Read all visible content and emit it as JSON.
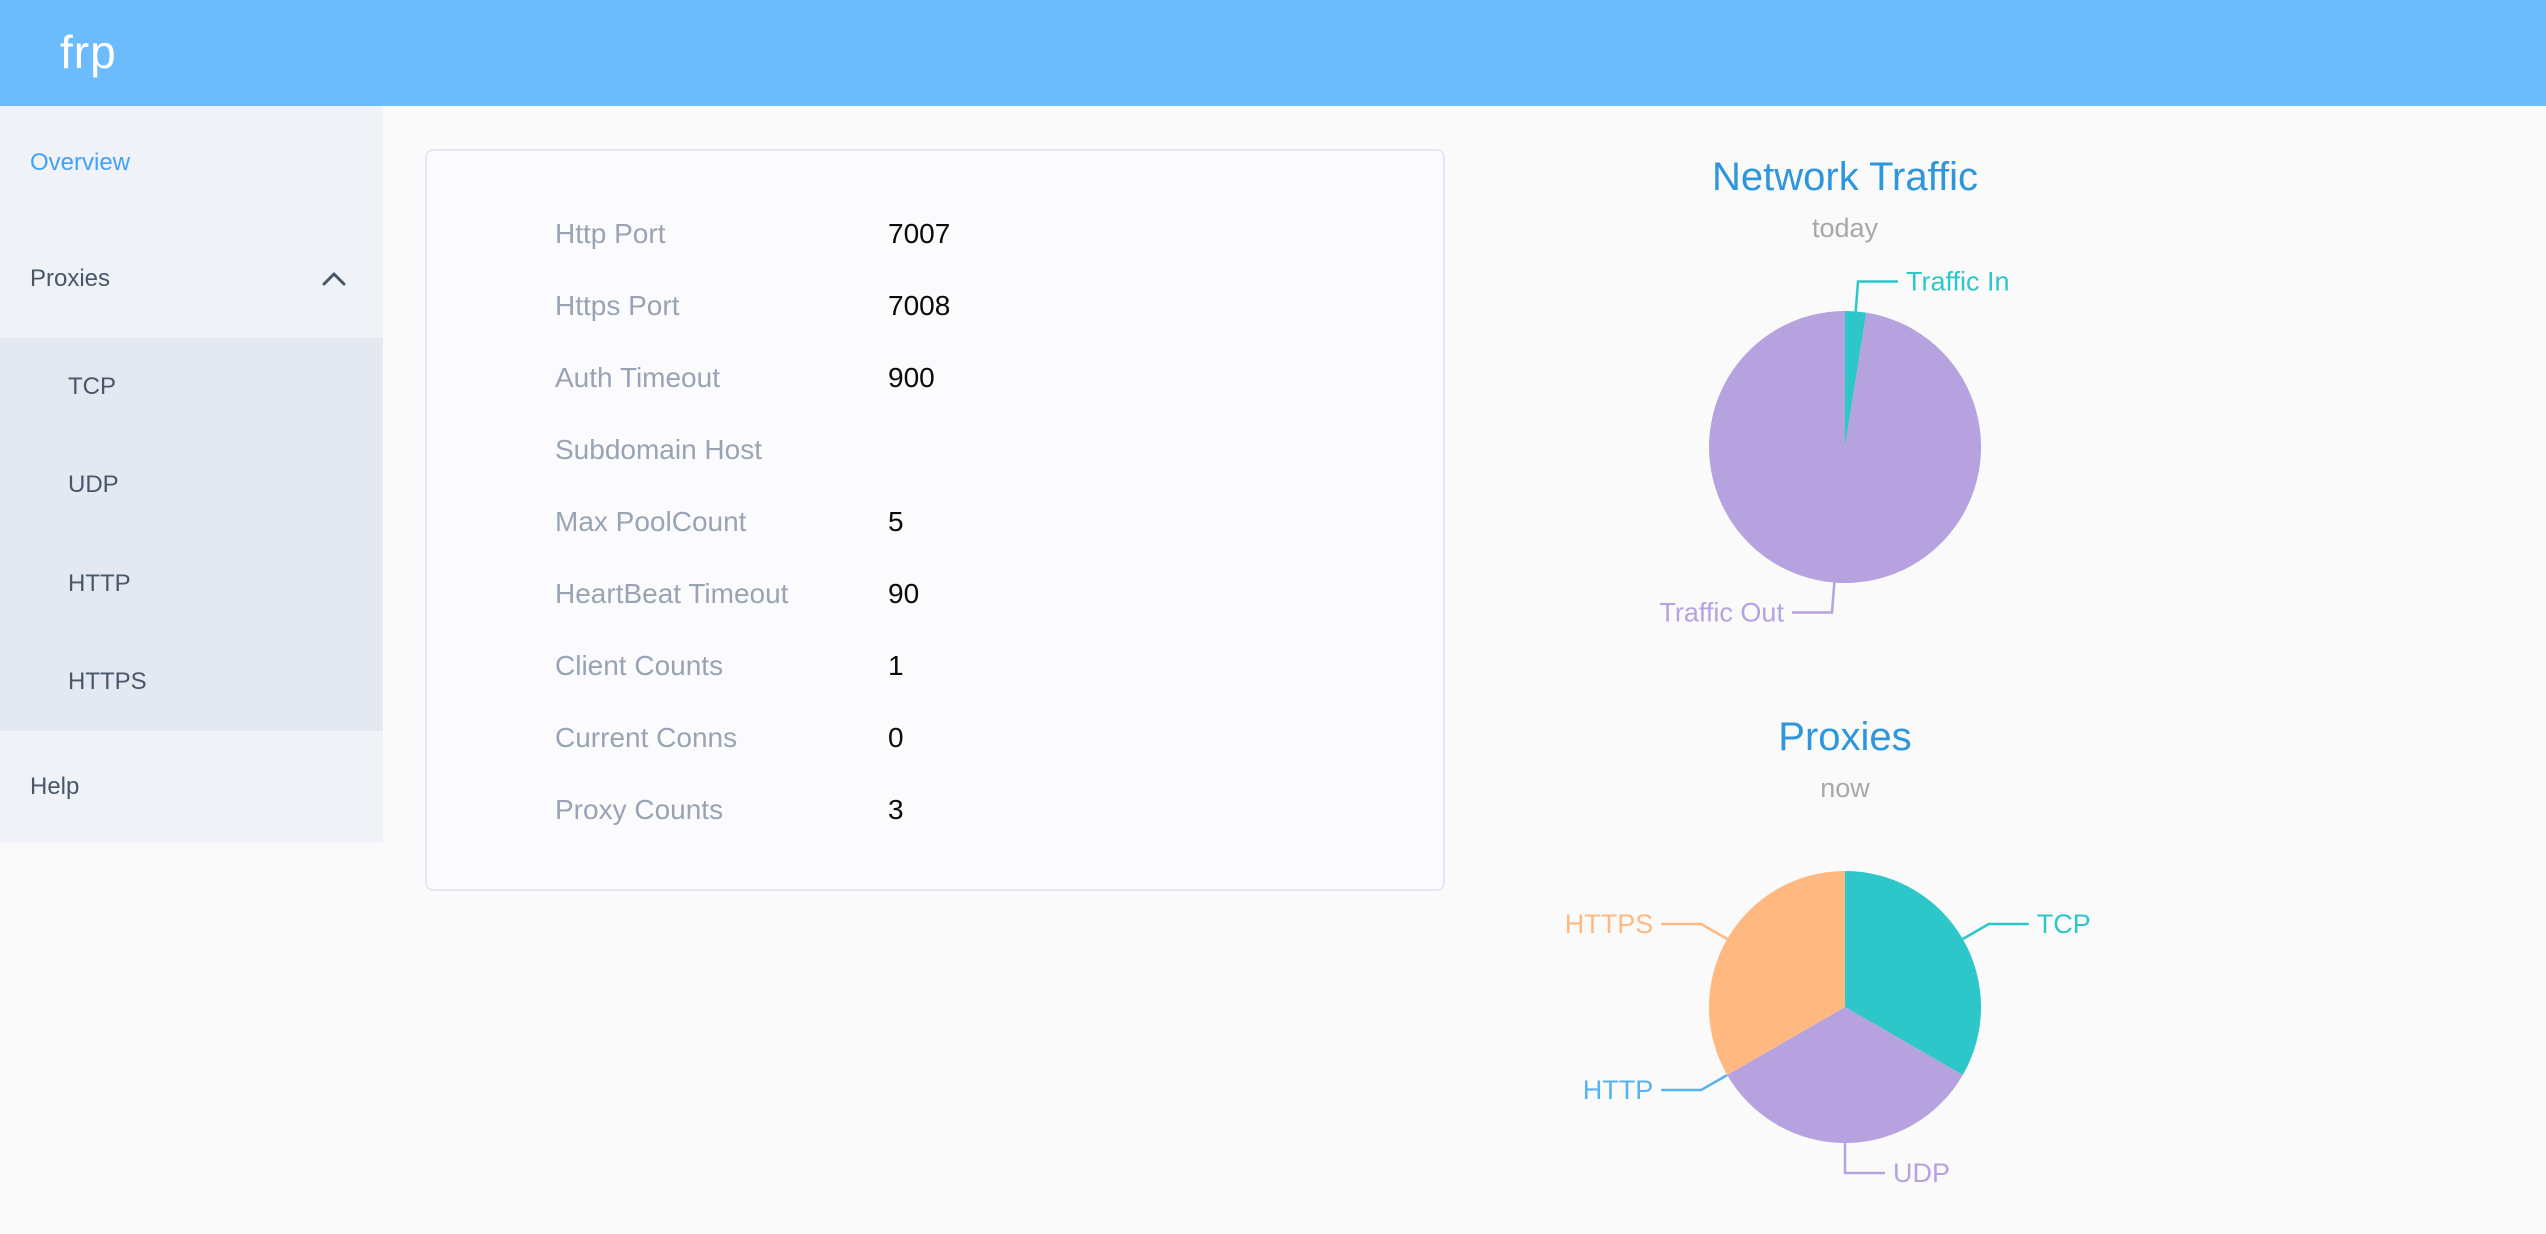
{
  "header": {
    "logo_text": "frp"
  },
  "sidebar": {
    "items": [
      {
        "label": "Overview",
        "active": true
      },
      {
        "label": "Proxies",
        "expanded": true,
        "children": [
          "TCP",
          "UDP",
          "HTTP",
          "HTTPS"
        ]
      },
      {
        "label": "Help"
      }
    ]
  },
  "overview": {
    "fields": [
      {
        "label": "Http Port",
        "value": "7007"
      },
      {
        "label": "Https Port",
        "value": "7008"
      },
      {
        "label": "Auth Timeout",
        "value": "900"
      },
      {
        "label": "Subdomain Host",
        "value": ""
      },
      {
        "label": "Max PoolCount",
        "value": "5"
      },
      {
        "label": "HeartBeat Timeout",
        "value": "90"
      },
      {
        "label": "Client Counts",
        "value": "1"
      },
      {
        "label": "Current Conns",
        "value": "0"
      },
      {
        "label": "Proxy Counts",
        "value": "3"
      }
    ]
  },
  "chart_data": [
    {
      "type": "pie",
      "title": "Network Traffic",
      "subtitle": "today",
      "legend_position": "none",
      "label_position": "outside",
      "values_are": "estimated_percent",
      "series": [
        {
          "name": "Traffic In",
          "value": 2.5,
          "color": "#2ec7c9"
        },
        {
          "name": "Traffic Out",
          "value": 97.5,
          "color": "#b6a2de"
        }
      ]
    },
    {
      "type": "pie",
      "title": "Proxies",
      "subtitle": "now",
      "legend_position": "none",
      "label_position": "outside",
      "values_are": "proxy_counts",
      "series": [
        {
          "name": "TCP",
          "value": 1,
          "color": "#2ec7c9"
        },
        {
          "name": "UDP",
          "value": 1,
          "color": "#b6a2de"
        },
        {
          "name": "HTTP",
          "value": 0,
          "color": "#5ab1ef"
        },
        {
          "name": "HTTPS",
          "value": 1,
          "color": "#ffb980"
        }
      ]
    }
  ],
  "colors": {
    "header_background": "#6cbbfc",
    "active_menu_item": "#42a2f8",
    "sidebar_text": "#48576a",
    "chart_title_blue": "#2e96dc"
  }
}
